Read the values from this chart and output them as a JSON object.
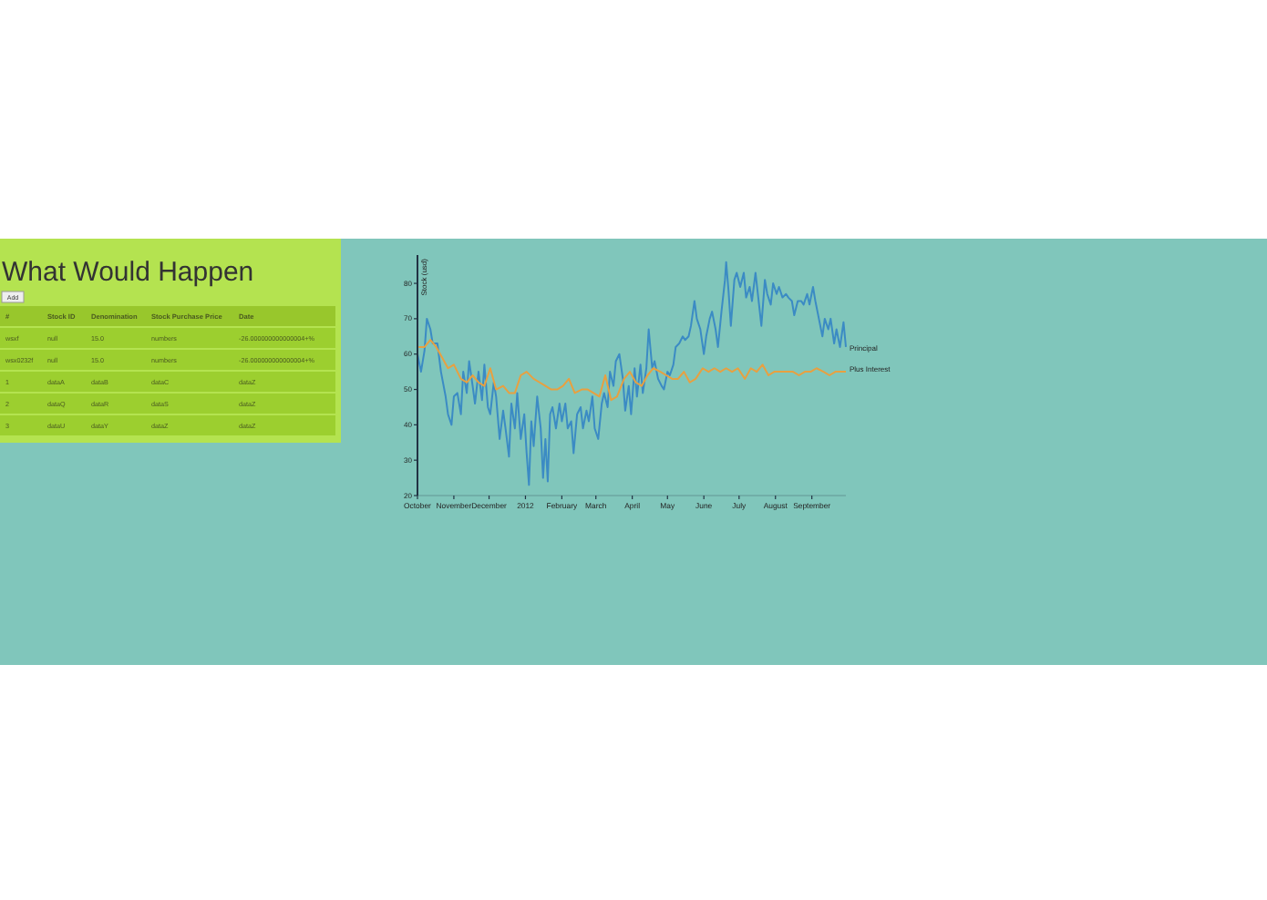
{
  "chart_data": [
    {
      "type": "other",
      "title": "What Would Happen",
      "annotations": [
        "Add",
        "#",
        "Stock ID",
        "Denomination",
        "Stock Purchase Price",
        "Date",
        "wsxf",
        "null",
        "15.0",
        "numbers",
        "-26.000000000000004+%",
        "wsx0232f",
        "null",
        "15.0",
        "numbers",
        "-26.000000000000004+%",
        "1",
        "dataA",
        "dataB",
        "dataC",
        "dataZ",
        "2",
        "dataQ",
        "dataR",
        "dataS",
        "dataZ",
        "3",
        "dataU",
        "dataY",
        "dataZ",
        "dataZ"
      ]
    },
    {
      "type": "line",
      "ylabel": "Stock (usd)",
      "marker": "none",
      "line_style": "solid",
      "xlim": [
        "2011-10-01",
        "2012-09-30"
      ],
      "ylim": [
        20,
        88
      ],
      "yticks": [
        20,
        30,
        40,
        50,
        60,
        70,
        80
      ],
      "xticks": [
        {
          "value": "2011-10-01",
          "label": "October"
        },
        {
          "value": "2011-11-01",
          "label": "November"
        },
        {
          "value": "2011-12-01",
          "label": "December"
        },
        {
          "value": "2012-01-01",
          "label": "2012"
        },
        {
          "value": "2012-02-01",
          "label": "February"
        },
        {
          "value": "2012-03-01",
          "label": "March"
        },
        {
          "value": "2012-04-01",
          "label": "April"
        },
        {
          "value": "2012-05-01",
          "label": "May"
        },
        {
          "value": "2012-06-01",
          "label": "June"
        },
        {
          "value": "2012-07-01",
          "label": "July"
        },
        {
          "value": "2012-08-01",
          "label": "August"
        },
        {
          "value": "2012-09-01",
          "label": "September"
        }
      ],
      "series": [
        {
          "name": "Principal",
          "color": "#3b8bc4",
          "x": [
            "2011-10-01",
            "2011-10-04",
            "2011-10-07",
            "2011-10-09",
            "2011-10-12",
            "2011-10-14",
            "2011-10-18",
            "2011-10-21",
            "2011-10-25",
            "2011-10-27",
            "2011-10-30",
            "2011-11-01",
            "2011-11-04",
            "2011-11-07",
            "2011-11-09",
            "2011-11-12",
            "2011-11-14",
            "2011-11-17",
            "2011-11-19",
            "2011-11-22",
            "2011-11-25",
            "2011-11-27",
            "2011-11-30",
            "2011-12-02",
            "2011-12-05",
            "2011-12-07",
            "2011-12-10",
            "2011-12-13",
            "2011-12-15",
            "2011-12-18",
            "2011-12-20",
            "2011-12-23",
            "2011-12-25",
            "2011-12-28",
            "2011-12-31",
            "2012-01-02",
            "2012-01-04",
            "2012-01-06",
            "2012-01-08",
            "2012-01-11",
            "2012-01-14",
            "2012-01-16",
            "2012-01-18",
            "2012-01-20",
            "2012-01-22",
            "2012-01-24",
            "2012-01-27",
            "2012-01-30",
            "2012-02-01",
            "2012-02-04",
            "2012-02-06",
            "2012-02-09",
            "2012-02-11",
            "2012-02-14",
            "2012-02-17",
            "2012-02-19",
            "2012-02-22",
            "2012-02-24",
            "2012-02-27",
            "2012-02-29",
            "2012-03-03",
            "2012-03-06",
            "2012-03-08",
            "2012-03-11",
            "2012-03-13",
            "2012-03-16",
            "2012-03-18",
            "2012-03-21",
            "2012-03-24",
            "2012-03-26",
            "2012-03-29",
            "2012-03-31",
            "2012-04-03",
            "2012-04-05",
            "2012-04-08",
            "2012-04-10",
            "2012-04-13",
            "2012-04-15",
            "2012-04-18",
            "2012-04-20",
            "2012-04-23",
            "2012-04-26",
            "2012-04-28",
            "2012-05-01",
            "2012-05-03",
            "2012-05-06",
            "2012-05-08",
            "2012-05-11",
            "2012-05-14",
            "2012-05-16",
            "2012-05-19",
            "2012-05-21",
            "2012-05-24",
            "2012-05-26",
            "2012-05-29",
            "2012-06-01",
            "2012-06-03",
            "2012-06-06",
            "2012-06-08",
            "2012-06-11",
            "2012-06-13",
            "2012-06-16",
            "2012-06-19",
            "2012-06-20",
            "2012-06-22",
            "2012-06-24",
            "2012-06-27",
            "2012-06-29",
            "2012-07-02",
            "2012-07-05",
            "2012-07-07",
            "2012-07-10",
            "2012-07-12",
            "2012-07-15",
            "2012-07-17",
            "2012-07-20",
            "2012-07-23",
            "2012-07-25",
            "2012-07-28",
            "2012-07-30",
            "2012-08-02",
            "2012-08-04",
            "2012-08-07",
            "2012-08-10",
            "2012-08-12",
            "2012-08-15",
            "2012-08-17",
            "2012-08-20",
            "2012-08-23",
            "2012-08-25",
            "2012-08-28",
            "2012-08-30",
            "2012-09-02",
            "2012-09-04",
            "2012-09-07",
            "2012-09-10",
            "2012-09-12",
            "2012-09-15",
            "2012-09-17",
            "2012-09-20",
            "2012-09-22",
            "2012-09-25",
            "2012-09-28",
            "2012-09-30"
          ],
          "values": [
            60,
            55,
            61,
            70,
            67,
            63,
            63,
            55,
            48,
            43,
            40,
            48,
            49,
            43,
            55,
            49,
            58,
            51,
            46,
            55,
            47,
            57,
            45,
            43,
            52,
            48,
            36,
            44,
            39,
            31,
            46,
            39,
            49,
            36,
            43,
            32,
            23,
            41,
            34,
            48,
            39,
            25,
            36,
            24,
            43,
            45,
            39,
            46,
            41,
            46,
            39,
            41,
            32,
            43,
            45,
            39,
            44,
            41,
            48,
            39,
            36,
            46,
            49,
            45,
            55,
            51,
            58,
            60,
            53,
            44,
            51,
            43,
            56,
            48,
            57,
            49,
            56,
            67,
            56,
            58,
            53,
            51,
            50,
            55,
            54,
            57,
            62,
            63,
            65,
            64,
            65,
            68,
            75,
            70,
            67,
            60,
            65,
            70,
            72,
            67,
            62,
            72,
            81,
            86,
            78,
            68,
            81,
            83,
            79,
            83,
            76,
            79,
            75,
            83,
            77,
            68,
            81,
            77,
            74,
            80,
            77,
            79,
            76,
            77,
            76,
            75,
            71,
            75,
            75,
            74,
            77,
            74,
            79,
            75,
            70,
            65,
            70,
            67,
            70,
            63,
            67,
            62,
            69,
            62
          ]
        },
        {
          "name": "Plus Interest",
          "color": "#e8a040",
          "x": [
            "2011-10-02",
            "2011-10-07",
            "2011-10-12",
            "2011-10-17",
            "2011-10-22",
            "2011-10-27",
            "2011-11-01",
            "2011-11-07",
            "2011-11-12",
            "2011-11-17",
            "2011-11-22",
            "2011-11-27",
            "2011-12-02",
            "2011-12-07",
            "2011-12-13",
            "2011-12-18",
            "2011-12-23",
            "2011-12-28",
            "2012-01-02",
            "2012-01-08",
            "2012-01-13",
            "2012-01-18",
            "2012-01-23",
            "2012-01-28",
            "2012-02-02",
            "2012-02-07",
            "2012-02-12",
            "2012-02-18",
            "2012-02-23",
            "2012-02-28",
            "2012-03-04",
            "2012-03-09",
            "2012-03-14",
            "2012-03-19",
            "2012-03-25",
            "2012-03-30",
            "2012-04-04",
            "2012-04-09",
            "2012-04-14",
            "2012-04-19",
            "2012-04-25",
            "2012-04-30",
            "2012-05-05",
            "2012-05-10",
            "2012-05-15",
            "2012-05-20",
            "2012-05-25",
            "2012-05-31",
            "2012-06-05",
            "2012-06-10",
            "2012-06-15",
            "2012-06-20",
            "2012-06-25",
            "2012-06-30",
            "2012-07-06",
            "2012-07-11",
            "2012-07-16",
            "2012-07-21",
            "2012-07-26",
            "2012-07-31",
            "2012-08-06",
            "2012-08-11",
            "2012-08-16",
            "2012-08-21",
            "2012-08-26",
            "2012-08-31",
            "2012-09-05",
            "2012-09-11",
            "2012-09-16",
            "2012-09-21",
            "2012-09-26",
            "2012-09-30"
          ],
          "values": [
            62,
            62,
            64,
            62,
            59,
            56,
            57,
            53,
            52,
            54,
            52,
            51,
            56,
            50,
            51,
            49,
            49,
            54,
            55,
            53,
            52,
            51,
            50,
            50,
            51,
            53,
            49,
            50,
            50,
            49,
            48,
            54,
            47,
            48,
            53,
            55,
            52,
            51,
            54,
            56,
            55,
            54,
            53,
            53,
            55,
            52,
            53,
            56,
            55,
            56,
            55,
            56,
            55,
            56,
            53,
            56,
            55,
            57,
            54,
            55,
            55,
            55,
            55,
            54,
            55,
            55,
            56,
            55,
            54,
            55,
            55,
            55
          ]
        }
      ]
    }
  ]
}
